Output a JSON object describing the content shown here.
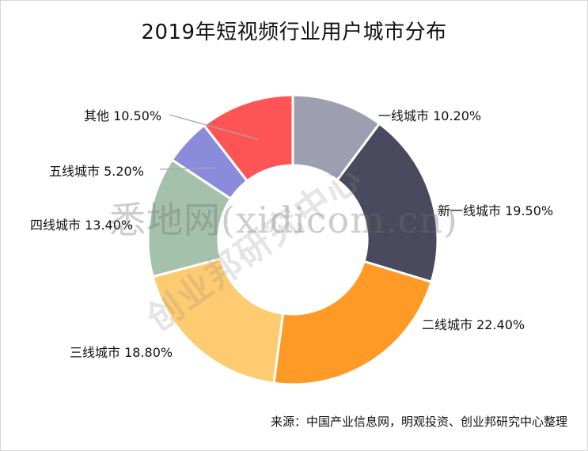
{
  "chart_data": {
    "type": "pie",
    "donut": true,
    "title": "2019年短视频行业用户城市分布",
    "start_angle_deg": 0,
    "direction": "clockwise",
    "slices": [
      {
        "name": "一线城市",
        "value": 10.2,
        "label": "一线城市 10.20%",
        "color": "#9d9fb1"
      },
      {
        "name": "新一线城市",
        "value": 19.5,
        "label": "新一线城市 19.50%",
        "color": "#4a4a5e"
      },
      {
        "name": "二线城市",
        "value": 22.4,
        "label": "二线城市 22.40%",
        "color": "#ff9a26"
      },
      {
        "name": "三线城市",
        "value": 18.8,
        "label": "三线城市 18.80%",
        "color": "#ffcb71"
      },
      {
        "name": "四线城市",
        "value": 13.4,
        "label": "四线城市 13.40%",
        "color": "#a4c1ab"
      },
      {
        "name": "五线城市",
        "value": 5.2,
        "label": "五线城市 5.20%",
        "color": "#8b8bdc"
      },
      {
        "name": "其他",
        "value": 10.5,
        "label": "其他 10.50%",
        "color": "#ff5456"
      }
    ]
  },
  "source": "来源：中国产业信息网，明观投资、创业邦研究中心整理",
  "watermarks": {
    "xidi": "悉地网(xidicom.cn)",
    "chuangye": "创业邦研究中心"
  }
}
